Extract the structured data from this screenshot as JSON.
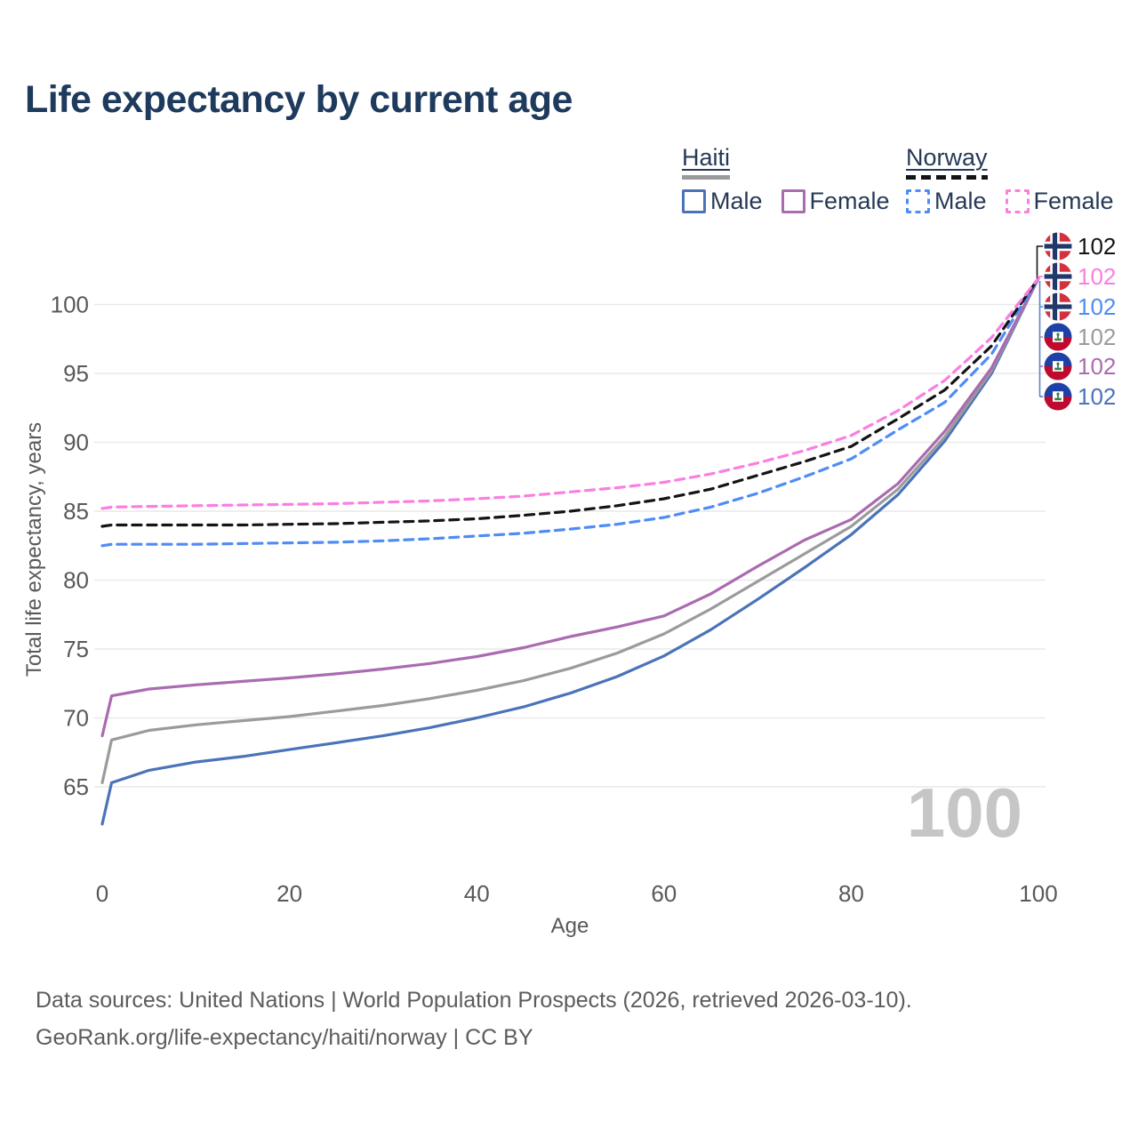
{
  "title": "Life expectancy by current age",
  "watermark_age": "100",
  "legend": {
    "groups": [
      {
        "label": "Haiti",
        "style": "solid",
        "rule_color": "#9b9b9b",
        "items": [
          {
            "label": "Male",
            "color": "#4a73b8",
            "dashed": false
          },
          {
            "label": "Female",
            "color": "#aa6bb0",
            "dashed": false
          }
        ]
      },
      {
        "label": "Norway",
        "style": "dashed",
        "rule_color": "#141414",
        "items": [
          {
            "label": "Male",
            "color": "#4e8cf6",
            "dashed": true
          },
          {
            "label": "Female",
            "color": "#fb7ee1",
            "dashed": true
          }
        ]
      }
    ]
  },
  "end_labels": [
    {
      "country": "norway",
      "value": "102",
      "color": "#141414"
    },
    {
      "country": "norway",
      "value": "102",
      "color": "#fb7ee1"
    },
    {
      "country": "norway",
      "value": "102",
      "color": "#4e8cf6"
    },
    {
      "country": "haiti",
      "value": "102",
      "color": "#9b9b9b"
    },
    {
      "country": "haiti",
      "value": "102",
      "color": "#aa6bb0"
    },
    {
      "country": "haiti",
      "value": "102",
      "color": "#4a73b8"
    }
  ],
  "chart_data": {
    "type": "line",
    "title": "Life expectancy by current age",
    "xlabel": "Age",
    "ylabel": "Total life expectancy, years",
    "xlim": [
      0,
      100
    ],
    "ylim": [
      62,
      103
    ],
    "xticks": [
      0,
      20,
      40,
      60,
      80,
      100
    ],
    "yticks": [
      65,
      70,
      75,
      80,
      85,
      90,
      95,
      100
    ],
    "grid": "horizontal",
    "legend_position": "top-right",
    "x": [
      0,
      1,
      5,
      10,
      15,
      20,
      25,
      30,
      35,
      40,
      45,
      50,
      55,
      60,
      65,
      70,
      75,
      80,
      85,
      90,
      95,
      100
    ],
    "series": [
      {
        "name": "Haiti Male",
        "country": "Haiti",
        "sex": "Male",
        "line": "solid",
        "color": "#4a73b8",
        "end_label": 102,
        "values": [
          62.3,
          65.3,
          66.2,
          66.8,
          67.2,
          67.7,
          68.2,
          68.7,
          69.3,
          70.0,
          70.8,
          71.8,
          73.0,
          74.5,
          76.4,
          78.6,
          80.9,
          83.3,
          86.2,
          90.1,
          95.0,
          101.9
        ]
      },
      {
        "name": "Haiti Total",
        "country": "Haiti",
        "sex": "Both",
        "line": "solid",
        "color": "#9b9b9b",
        "end_label": 102,
        "values": [
          65.3,
          68.4,
          69.1,
          69.5,
          69.8,
          70.1,
          70.5,
          70.9,
          71.4,
          72.0,
          72.7,
          73.6,
          74.7,
          76.1,
          77.9,
          79.9,
          81.9,
          83.9,
          86.6,
          90.4,
          95.2,
          101.9
        ]
      },
      {
        "name": "Haiti Female",
        "country": "Haiti",
        "sex": "Female",
        "line": "solid",
        "color": "#aa6bb0",
        "end_label": 102,
        "values": [
          68.7,
          71.6,
          72.1,
          72.4,
          72.65,
          72.9,
          73.2,
          73.55,
          73.95,
          74.45,
          75.1,
          75.9,
          76.6,
          77.4,
          79.0,
          81.0,
          82.9,
          84.4,
          87.0,
          90.8,
          95.4,
          101.9
        ]
      },
      {
        "name": "Norway Male",
        "country": "Norway",
        "sex": "Male",
        "line": "dashed",
        "color": "#4e8cf6",
        "end_label": 102,
        "values": [
          82.5,
          82.6,
          82.6,
          82.6,
          82.65,
          82.7,
          82.75,
          82.85,
          83.0,
          83.2,
          83.4,
          83.7,
          84.05,
          84.55,
          85.3,
          86.3,
          87.5,
          88.8,
          90.9,
          92.9,
          96.4,
          101.9
        ]
      },
      {
        "name": "Norway Total",
        "country": "Norway",
        "sex": "Both",
        "line": "dashed",
        "color": "#141414",
        "end_label": 102,
        "values": [
          83.9,
          84.0,
          84.0,
          84.0,
          84.0,
          84.05,
          84.1,
          84.2,
          84.3,
          84.45,
          84.7,
          85.0,
          85.4,
          85.9,
          86.6,
          87.6,
          88.6,
          89.7,
          91.7,
          93.8,
          97.0,
          101.9
        ]
      },
      {
        "name": "Norway Female",
        "country": "Norway",
        "sex": "Female",
        "line": "dashed",
        "color": "#fb7ee1",
        "end_label": 102,
        "values": [
          85.2,
          85.3,
          85.35,
          85.4,
          85.45,
          85.5,
          85.55,
          85.65,
          85.75,
          85.9,
          86.1,
          86.4,
          86.7,
          87.1,
          87.7,
          88.5,
          89.4,
          90.5,
          92.3,
          94.5,
          97.6,
          101.9
        ]
      }
    ]
  },
  "footer": {
    "line1": "Data sources: United Nations | World Population Prospects (2026, retrieved 2026-03-10).",
    "line2": "GeoRank.org/life-expectancy/haiti/norway | CC BY"
  }
}
